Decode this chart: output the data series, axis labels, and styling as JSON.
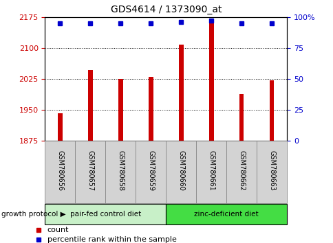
{
  "title": "GDS4614 / 1373090_at",
  "samples": [
    "GSM780656",
    "GSM780657",
    "GSM780658",
    "GSM780659",
    "GSM780660",
    "GSM780661",
    "GSM780662",
    "GSM780663"
  ],
  "counts": [
    1942,
    2047,
    2025,
    2030,
    2108,
    2168,
    1988,
    2022
  ],
  "percentile_ranks": [
    95,
    95,
    95,
    95,
    96,
    97,
    95,
    95
  ],
  "ylim_left": [
    1875,
    2175
  ],
  "ylim_right": [
    0,
    100
  ],
  "yticks_left": [
    1875,
    1950,
    2025,
    2100,
    2175
  ],
  "yticks_right": [
    0,
    25,
    50,
    75,
    100
  ],
  "ytick_labels_right": [
    "0",
    "25",
    "50",
    "75",
    "100%"
  ],
  "bar_color": "#cc0000",
  "marker_color": "#0000cc",
  "axis_left_color": "#cc0000",
  "axis_right_color": "#0000cc",
  "groups": [
    {
      "label": "pair-fed control diet",
      "start": 0,
      "end": 4,
      "color": "#c8f0c8"
    },
    {
      "label": "zinc-deficient diet",
      "start": 4,
      "end": 8,
      "color": "#44dd44"
    }
  ],
  "group_label": "growth protocol",
  "legend_items": [
    {
      "label": "count",
      "color": "#cc0000"
    },
    {
      "label": "percentile rank within the sample",
      "color": "#0000cc"
    }
  ],
  "bar_width": 0.15,
  "xtick_bg_color": "#d3d3d3",
  "xtick_border_color": "#888888"
}
